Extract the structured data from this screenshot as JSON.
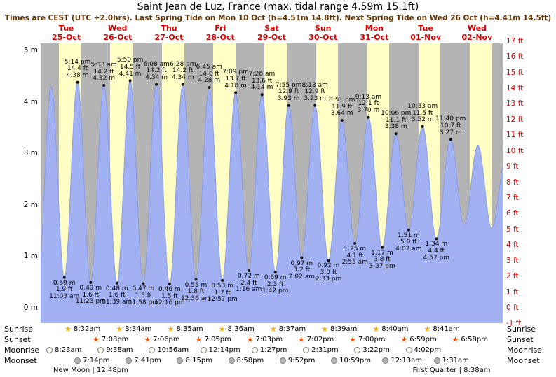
{
  "header": {
    "title": "Saint Jean de Luz, France (max. tidal range 4.59m 15.1ft)",
    "subtitle": "Times are CEST (UTC +2.0hrs). Last Spring Tide on Mon 10 Oct (h=4.51m 14.8ft). Next Spring Tide on Wed 26 Oct (h=4.41m 14.5ft)"
  },
  "chart_data": {
    "type": "area",
    "title": "Tide height curve",
    "x_range_hours": 216,
    "ylim_m": [
      -0.3,
      5.14
    ],
    "x_days": [
      {
        "weekday": "Tue",
        "date": "25-Oct"
      },
      {
        "weekday": "Wed",
        "date": "26-Oct"
      },
      {
        "weekday": "Thu",
        "date": "27-Oct"
      },
      {
        "weekday": "Fri",
        "date": "28-Oct"
      },
      {
        "weekday": "Sat",
        "date": "29-Oct"
      },
      {
        "weekday": "Sun",
        "date": "30-Oct"
      },
      {
        "weekday": "Mon",
        "date": "31-Oct"
      },
      {
        "weekday": "Tue",
        "date": "01-Nov"
      },
      {
        "weekday": "Wed",
        "date": "02-Nov"
      }
    ],
    "y_axis_left_ticks": [
      "5 m",
      "4 m",
      "3 m",
      "2 m",
      "1 m",
      "0 m"
    ],
    "y_axis_right_ticks": [
      "17 ft",
      "16 ft",
      "15 ft",
      "14 ft",
      "13 ft",
      "12 ft",
      "11 ft",
      "10 ft",
      "9 ft",
      "8 ft",
      "7 ft",
      "6 ft",
      "5 ft",
      "4 ft",
      "3 ft",
      "2 ft",
      "1 ft",
      "0 ft",
      "-1 ft"
    ],
    "tide_events": [
      {
        "t_hours": -1.3,
        "height_m": 0.52,
        "type": "low",
        "annotated": false
      },
      {
        "t_hours": 4.92,
        "height_m": 4.3,
        "type": "high",
        "annotated": false
      },
      {
        "t_hours": 11.05,
        "height_m": 0.59,
        "height_ft": 1.9,
        "time": "11:03 am",
        "type": "low",
        "annotated": true
      },
      {
        "t_hours": 17.23,
        "height_m": 4.38,
        "height_ft": 14.4,
        "time": "5:14 pm",
        "type": "high",
        "annotated": true
      },
      {
        "t_hours": 23.38,
        "height_m": 0.49,
        "height_ft": 1.6,
        "time": "11:23 pm",
        "type": "low",
        "annotated": true
      },
      {
        "t_hours": 29.55,
        "height_m": 4.32,
        "height_ft": 14.2,
        "time": "5:33 am",
        "type": "high",
        "annotated": true
      },
      {
        "t_hours": 35.65,
        "height_m": 0.48,
        "height_ft": 1.6,
        "time": "11:39 am",
        "type": "low",
        "annotated": true
      },
      {
        "t_hours": 41.83,
        "height_m": 4.41,
        "height_ft": 14.5,
        "time": "5:50 pm",
        "type": "high",
        "annotated": true
      },
      {
        "t_hours": 47.97,
        "height_m": 0.47,
        "height_ft": 1.5,
        "time": "11:58 pm",
        "type": "low",
        "annotated": true
      },
      {
        "t_hours": 54.13,
        "height_m": 4.34,
        "height_ft": 14.2,
        "time": "6:08 am",
        "type": "high",
        "annotated": true
      },
      {
        "t_hours": 60.27,
        "height_m": 0.46,
        "height_ft": 1.5,
        "time": "12:16 pm",
        "type": "low",
        "annotated": true
      },
      {
        "t_hours": 66.47,
        "height_m": 4.34,
        "height_ft": 14.2,
        "time": "6:28 pm",
        "type": "high",
        "annotated": true
      },
      {
        "t_hours": 72.6,
        "height_m": 0.55,
        "height_ft": 1.8,
        "time": "12:36 am",
        "type": "low",
        "annotated": true
      },
      {
        "t_hours": 78.75,
        "height_m": 4.28,
        "height_ft": 14.0,
        "time": "6:45 am",
        "type": "high",
        "annotated": true
      },
      {
        "t_hours": 84.95,
        "height_m": 0.53,
        "height_ft": 1.7,
        "time": "12:57 pm",
        "type": "low",
        "annotated": true
      },
      {
        "t_hours": 91.15,
        "height_m": 4.18,
        "height_ft": 13.7,
        "time": "7:09 pm",
        "type": "high",
        "annotated": true
      },
      {
        "t_hours": 97.27,
        "height_m": 0.72,
        "height_ft": 2.4,
        "time": "1:16 am",
        "type": "low",
        "annotated": true
      },
      {
        "t_hours": 103.43,
        "height_m": 4.14,
        "height_ft": 13.6,
        "time": "7:26 am",
        "type": "high",
        "annotated": true
      },
      {
        "t_hours": 109.7,
        "height_m": 0.69,
        "height_ft": 2.3,
        "time": "1:42 pm",
        "type": "low",
        "annotated": true
      },
      {
        "t_hours": 115.92,
        "height_m": 3.93,
        "height_ft": 12.9,
        "time": "7:55 pm",
        "type": "high",
        "annotated": true
      },
      {
        "t_hours": 122.03,
        "height_m": 0.97,
        "height_ft": 3.2,
        "time": "2:02 am",
        "type": "low",
        "annotated": true
      },
      {
        "t_hours": 128.22,
        "height_m": 3.93,
        "height_ft": 12.9,
        "time": "8:13 am",
        "type": "high",
        "annotated": true
      },
      {
        "t_hours": 134.55,
        "height_m": 0.92,
        "height_ft": 3.0,
        "time": "2:33 pm",
        "type": "low",
        "annotated": true
      },
      {
        "t_hours": 140.85,
        "height_m": 3.64,
        "height_ft": 11.9,
        "time": "8:51 pm",
        "type": "high",
        "annotated": true
      },
      {
        "t_hours": 146.92,
        "height_m": 1.25,
        "height_ft": 4.1,
        "time": "2:55 am",
        "type": "low",
        "annotated": true
      },
      {
        "t_hours": 153.22,
        "height_m": 3.7,
        "height_ft": 12.1,
        "time": "9:13 am",
        "type": "high",
        "annotated": true
      },
      {
        "t_hours": 159.62,
        "height_m": 1.17,
        "height_ft": 3.8,
        "time": "3:37 pm",
        "type": "low",
        "annotated": true
      },
      {
        "t_hours": 166.1,
        "height_m": 3.38,
        "height_ft": 11.1,
        "time": "10:06 pm",
        "type": "high",
        "annotated": true
      },
      {
        "t_hours": 172.03,
        "height_m": 1.51,
        "height_ft": 5.0,
        "time": "4:02 am",
        "type": "low",
        "annotated": true
      },
      {
        "t_hours": 178.55,
        "height_m": 3.52,
        "height_ft": 11.5,
        "time": "10:33 am",
        "type": "high",
        "annotated": true
      },
      {
        "t_hours": 184.95,
        "height_m": 1.34,
        "height_ft": 4.4,
        "time": "4:57 pm",
        "type": "low",
        "annotated": true
      },
      {
        "t_hours": 191.67,
        "height_m": 3.27,
        "height_ft": 10.7,
        "time": "11:40 pm",
        "type": "high",
        "annotated": true
      },
      {
        "t_hours": 197.9,
        "height_m": 1.62,
        "type": "low",
        "annotated": false
      },
      {
        "t_hours": 204.4,
        "height_m": 3.15,
        "type": "high",
        "annotated": false
      },
      {
        "t_hours": 210.8,
        "height_m": 1.55,
        "type": "low",
        "annotated": false
      },
      {
        "t_hours": 217.5,
        "height_m": 2.9,
        "type": "high",
        "annotated": false
      }
    ]
  },
  "astro": {
    "row_labels": [
      "Sunrise",
      "Sunset",
      "Moonrise",
      "Moonset"
    ],
    "sunrise": [
      "8:32am",
      "8:34am",
      "8:35am",
      "8:36am",
      "8:37am",
      "8:39am",
      "8:40am",
      "8:41am"
    ],
    "sunset": [
      "7:08pm",
      "7:06pm",
      "7:05pm",
      "7:03pm",
      "7:02pm",
      "7:00pm",
      "6:59pm",
      "6:58pm"
    ],
    "moonrise": [
      "8:23am",
      "9:38am",
      "10:56am",
      "12:14pm",
      "1:27pm",
      "2:31pm",
      "3:22pm",
      "4:02pm"
    ],
    "moonset": [
      "7:14pm",
      "7:41pm",
      "8:15pm",
      "8:58pm",
      "9:52pm",
      "10:59pm",
      "12:13am",
      "1:31am"
    ],
    "moon_phase_notes": [
      {
        "text": "New Moon | 12:48pm",
        "day_index": 0
      },
      {
        "text": "First Quarter | 8:38am",
        "day_index": 7
      }
    ]
  },
  "colors": {
    "day_band": "#ffffc6",
    "night_band": "#b4b4b4",
    "tide_fill": "#a2b1f2",
    "tide_stroke": "#8a9bea",
    "axis_red": "#e00000",
    "subtitle": "#663300",
    "sunrise_icon": "#f2a900",
    "sunset_icon": "#e85000",
    "moonrise_icon": "#fffff2",
    "moonset_icon": "#b3b3b3"
  }
}
